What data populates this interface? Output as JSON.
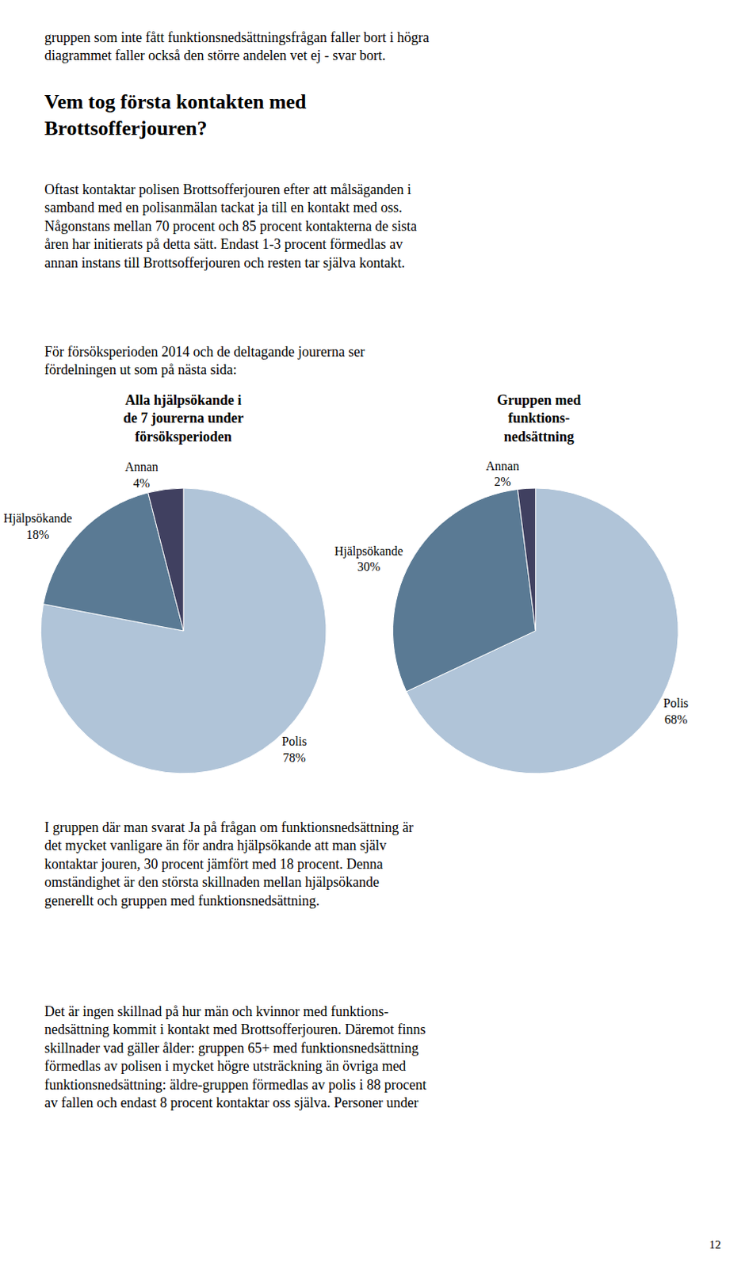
{
  "title": "Vem tog första kontakten med\nBrottsofferjouren?",
  "annotations": [
    "gruppen som inte fått funktionsnedsättningsfrågan faller bort i högra\ndiagrammet faller också den större andelen vet ej - svar bort.",
    "Oftast kontaktar polisen Brottsofferjouren efter att målsäganden i\nsamband med en polisanmälan tackat ja till en kontakt med oss.\nNågonstans mellan 70 procent och 85 procent kontakterna de sista\nåren har initierats på detta sätt. Endast 1-3 procent förmedlas av\nannan instans till Brottsofferjouren och resten tar själva kontakt.",
    "För försöksperioden 2014 och de deltagande jourerna ser\nfördelningen ut som på nästa sida:",
    "I gruppen där man svarat Ja på frågan om funktionsnedsättning är\ndet mycket vanligare än för andra hjälpsökande att man själv\nkontaktar jouren, 30 procent jämfört med 18 procent. Denna\nomständighet är den största skillnaden mellan hjälpsökande\ngenerellt och gruppen med funktionsnedsättning.",
    "Det är ingen skillnad på hur män och kvinnor med funktions-\nnedsättning kommit i kontakt med Brottsofferjouren. Däremot finns\nskillnader vad gäller ålder: gruppen 65+ med funktionsnedsättning\nförmedlas av polisen i mycket högre utsträckning än övriga med\nfunktionsnedsättning: äldre-gruppen förmedlas av polis i 88 procent\nav fallen och endast 8 procent kontaktar oss själva. Personer under",
    "12"
  ],
  "chart_data": [
    {
      "type": "pie",
      "title": "Alla hjälpsökande i\nde 7 jourerna under\nförsöksperioden",
      "categories": [
        "Polis",
        "Hjälpsökande",
        "Annan"
      ],
      "values": [
        78,
        18,
        4
      ],
      "value_labels": [
        "78%",
        "18%",
        "4%"
      ],
      "colors": [
        "#b0c4d8",
        "#5a7a94",
        "#404060"
      ],
      "data_labels": true
    },
    {
      "type": "pie",
      "title": "Gruppen med\nfunktions-\nnedsättning",
      "categories": [
        "Polis",
        "Hjälpsökande",
        "Annan"
      ],
      "values": [
        68,
        30,
        2
      ],
      "value_labels": [
        "68%",
        "30%",
        "2%"
      ],
      "colors": [
        "#b0c4d8",
        "#5a7a94",
        "#404060"
      ],
      "data_labels": true
    }
  ]
}
